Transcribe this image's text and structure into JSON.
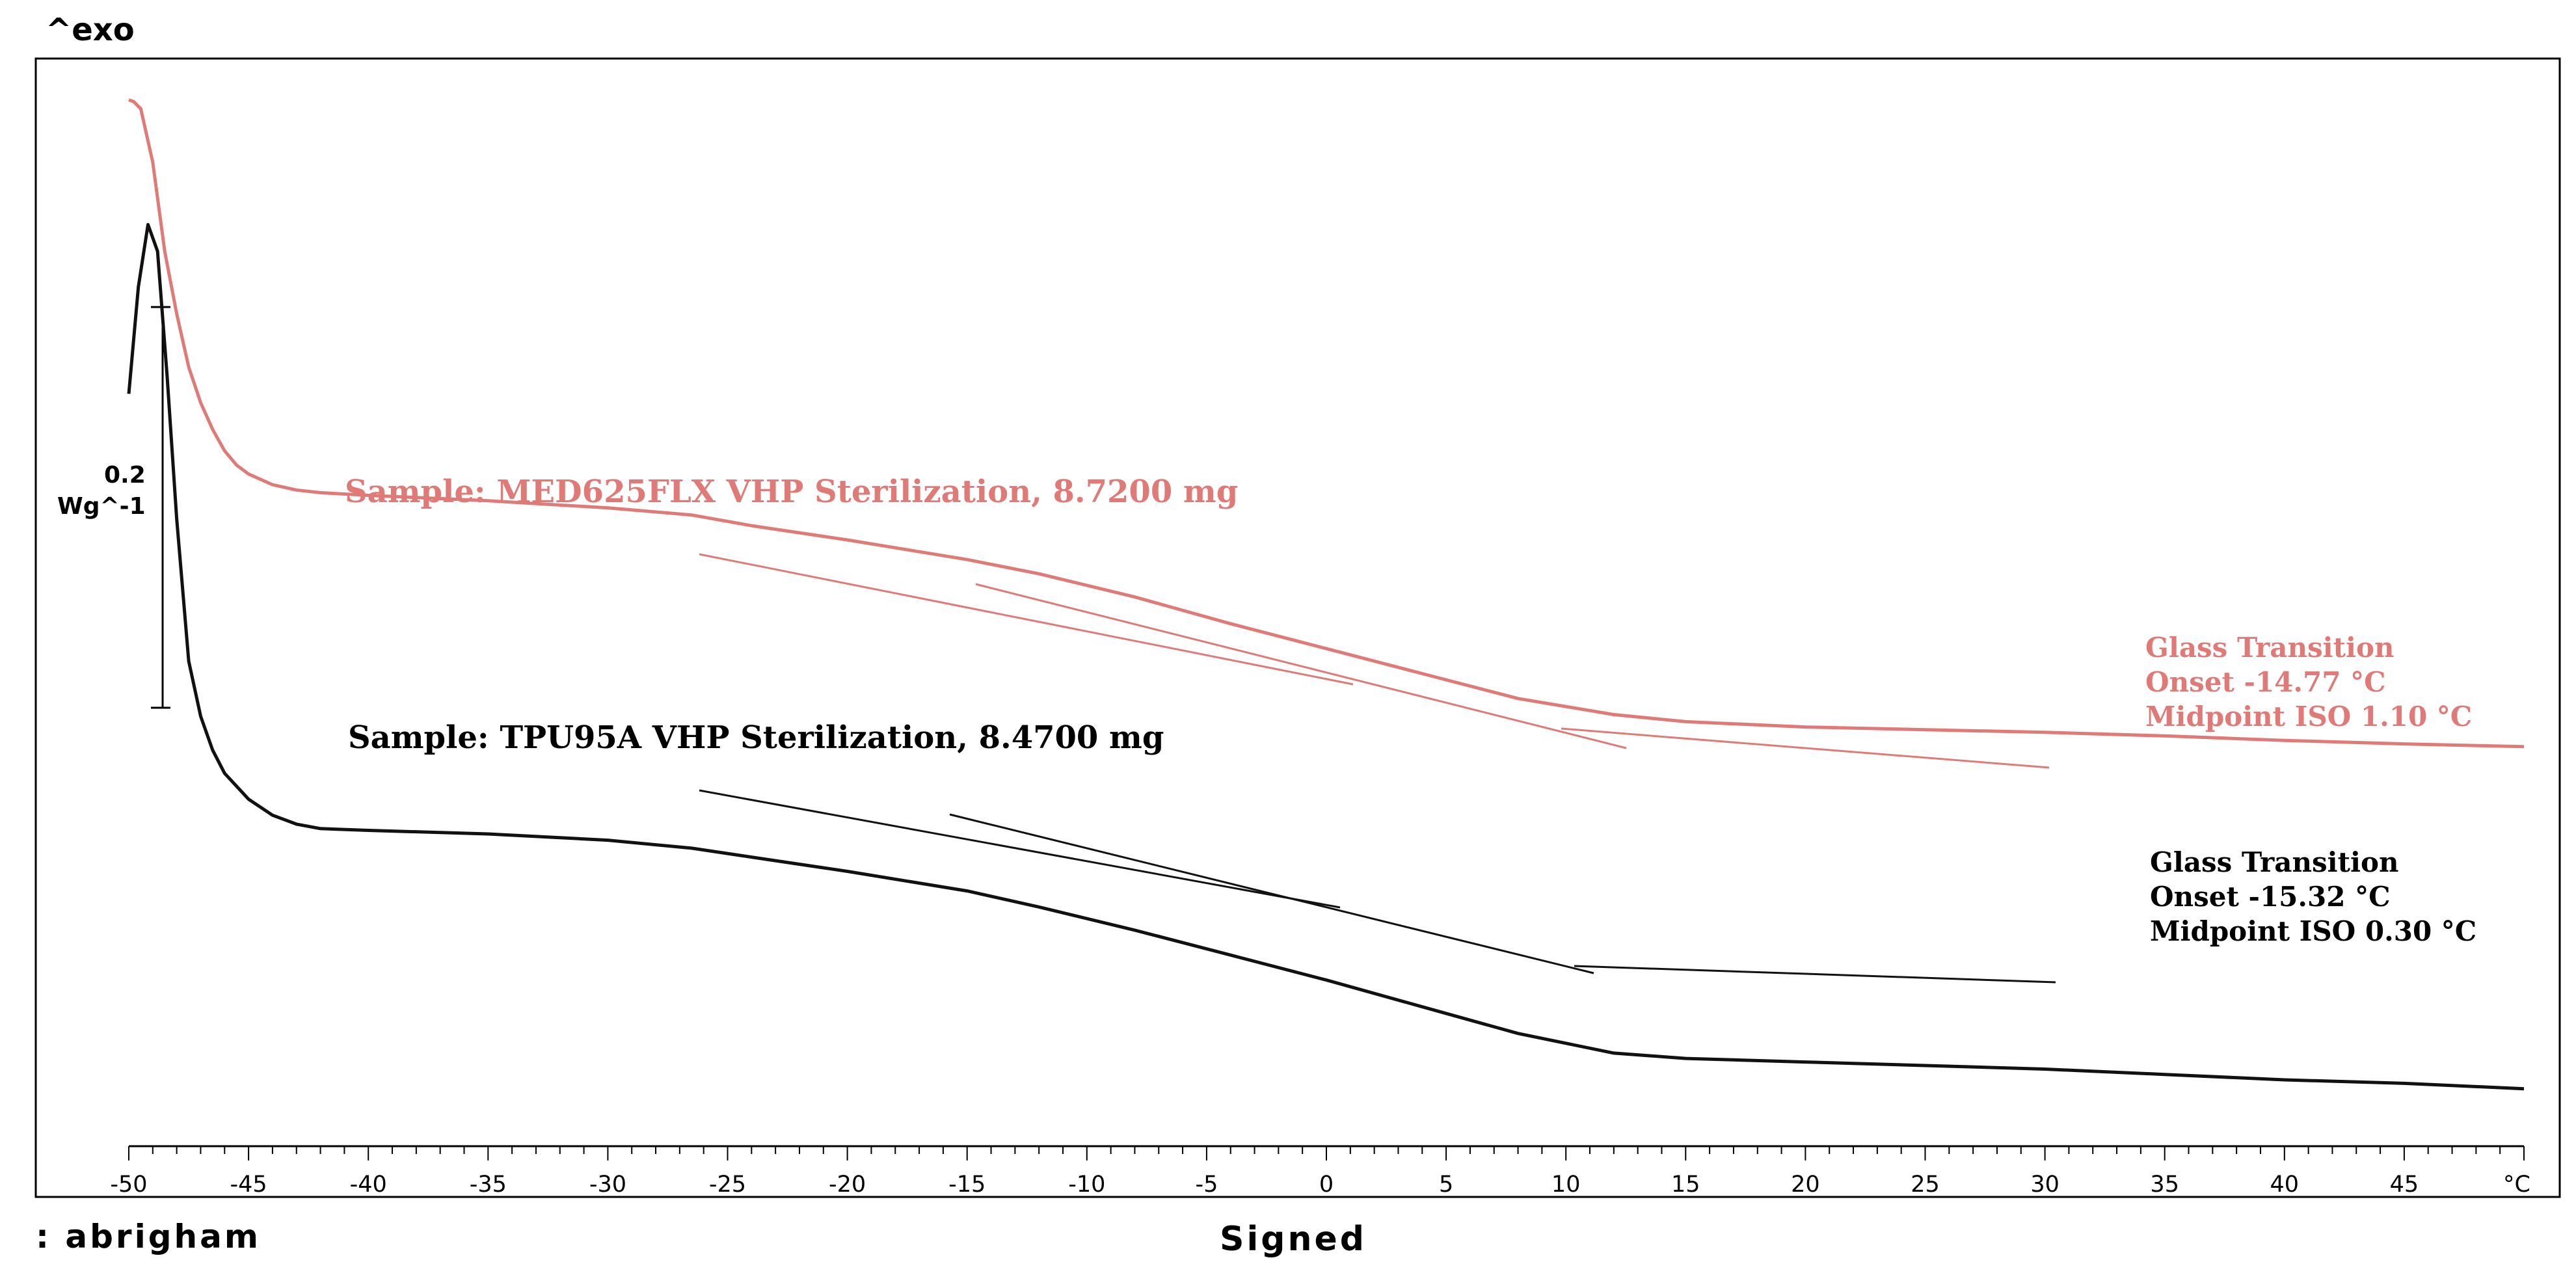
{
  "header": {
    "exo_label": "^exo"
  },
  "footer": {
    "user": ": abrigham",
    "signed": "Signed"
  },
  "scale_bar": {
    "value": "0.2",
    "unit": "Wg^-1",
    "height_W_per_g": 0.2
  },
  "chart_data": {
    "type": "line",
    "title": "",
    "xlabel": "°C",
    "ylabel": "^exo",
    "xlim": [
      -50,
      50
    ],
    "ylim": [
      -0.2,
      0.44
    ],
    "x_ticks": [
      -50,
      -45,
      -40,
      -35,
      -30,
      -25,
      -20,
      -15,
      -10,
      -5,
      0,
      5,
      10,
      15,
      20,
      25,
      30,
      35,
      40,
      45
    ],
    "x_unit_label": "°C",
    "grid": false,
    "series": [
      {
        "name": "Sample: MED625FLX VHP Sterilization, 8.7200 mg",
        "color": "#e07a76",
        "x": [
          -50,
          -49.8,
          -49.5,
          -49,
          -48.5,
          -48,
          -47.5,
          -47,
          -46.5,
          -46,
          -45.5,
          -45,
          -44,
          -43,
          -42,
          -40,
          -35,
          -30,
          -26.5,
          -24,
          -20,
          -15,
          -12,
          -8,
          -4,
          0,
          4,
          8,
          12,
          15,
          20,
          25,
          30,
          35,
          40,
          45,
          50
        ],
        "y": [
          0.415,
          0.414,
          0.41,
          0.38,
          0.33,
          0.295,
          0.265,
          0.245,
          0.23,
          0.218,
          0.21,
          0.205,
          0.199,
          0.196,
          0.1945,
          0.193,
          0.19,
          0.186,
          0.182,
          0.176,
          0.168,
          0.157,
          0.149,
          0.136,
          0.121,
          0.107,
          0.093,
          0.079,
          0.07,
          0.066,
          0.063,
          0.0615,
          0.06,
          0.058,
          0.0555,
          0.0535,
          0.052
        ],
        "glass_transition": {
          "title": "Glass Transition",
          "onset": "Onset -14.77 °C",
          "midpoint": "Midpoint ISO 1.10 °C"
        }
      },
      {
        "name": "Sample: TPU95A VHP Sterilization, 8.4700 mg",
        "color": "#111111",
        "x": [
          -50,
          -49.6,
          -49.2,
          -48.8,
          -48.4,
          -48,
          -47.5,
          -47,
          -46.5,
          -46,
          -45,
          -44,
          -43,
          -42,
          -40,
          -35,
          -30,
          -26.5,
          -24,
          -20,
          -15,
          -12,
          -8,
          -4,
          0,
          4,
          8,
          12,
          15,
          20,
          25,
          30,
          35,
          40,
          45,
          50
        ],
        "y": [
          0.25,
          0.31,
          0.345,
          0.33,
          0.26,
          0.18,
          0.1,
          0.069,
          0.05,
          0.037,
          0.0225,
          0.0135,
          0.0085,
          0.006,
          0.005,
          0.003,
          -0.0005,
          -0.005,
          -0.01,
          -0.018,
          -0.029,
          -0.038,
          -0.051,
          -0.065,
          -0.079,
          -0.094,
          -0.109,
          -0.12,
          -0.123,
          -0.125,
          -0.127,
          -0.129,
          -0.132,
          -0.135,
          -0.137,
          -0.14
        ],
        "glass_transition": {
          "title": "Glass Transition",
          "onset": "Onset -15.32 °C",
          "midpoint": "Midpoint ISO 0.30 °C"
        }
      }
    ]
  }
}
